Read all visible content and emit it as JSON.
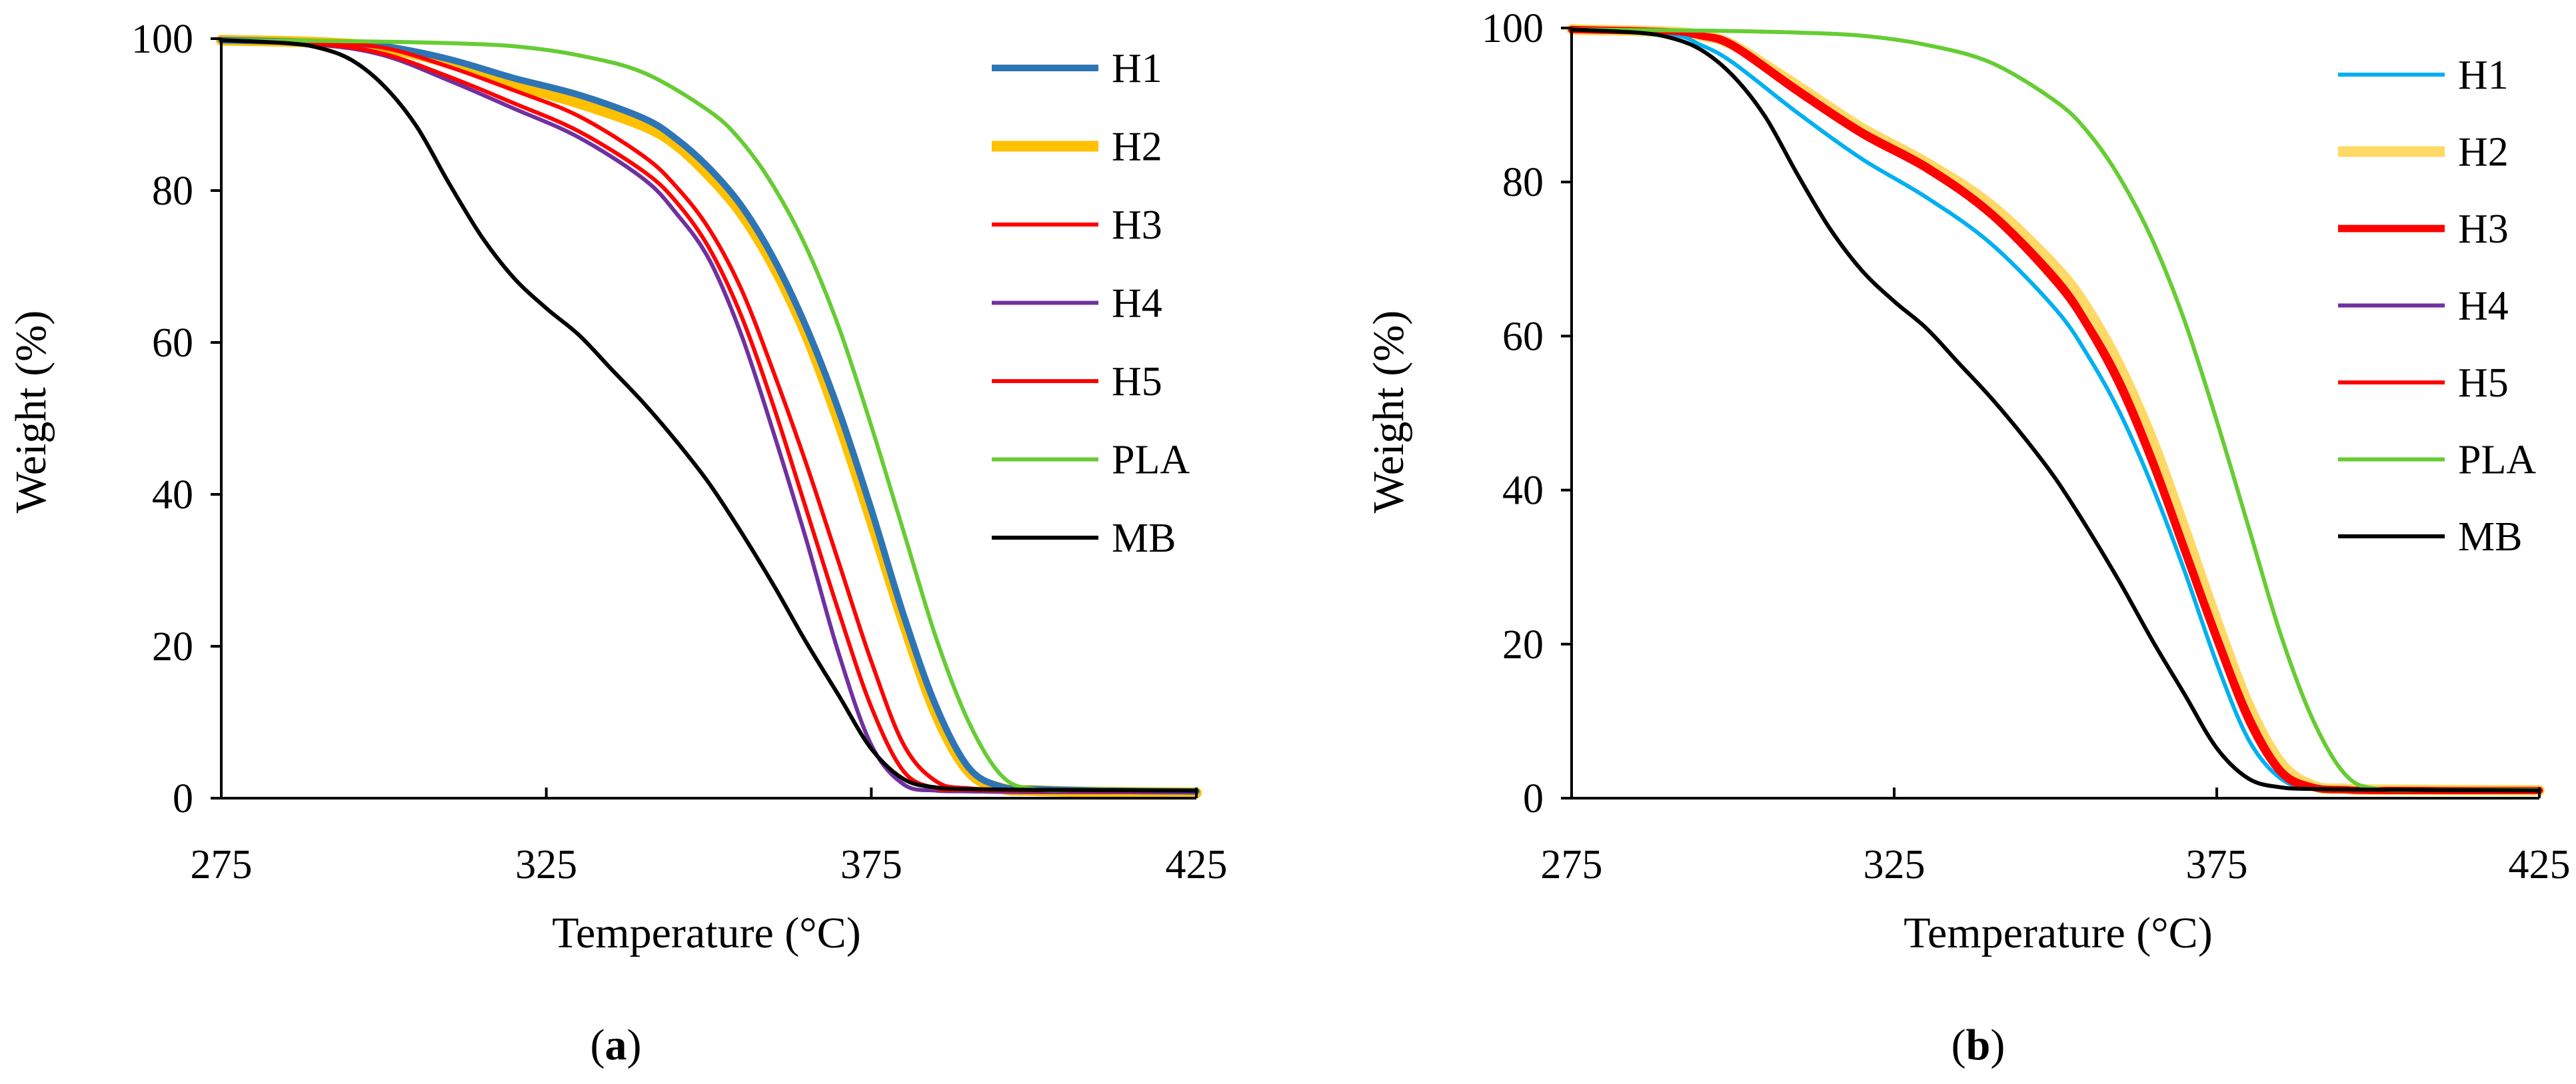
{
  "figure": {
    "panels": [
      {
        "label_open": "(",
        "label_letter": "a",
        "label_close": ")"
      },
      {
        "label_open": "(",
        "label_letter": "b",
        "label_close": ")"
      }
    ]
  },
  "chart_data": [
    {
      "type": "line",
      "panel": "a",
      "title": "",
      "xlabel": "Temperature (°C)",
      "ylabel": "Weight (%)",
      "xlim": [
        275,
        425
      ],
      "ylim": [
        0,
        100
      ],
      "xticks": [
        275,
        325,
        375,
        425
      ],
      "yticks": [
        0,
        20,
        40,
        60,
        80,
        100
      ],
      "legend_position": "right",
      "series": [
        {
          "name": "H1",
          "color": "#2e75b6",
          "width": 10,
          "x": [
            275,
            290,
            300,
            310,
            320,
            330,
            340,
            345,
            350,
            355,
            360,
            365,
            370,
            375,
            380,
            385,
            390,
            395,
            400,
            410,
            425
          ],
          "y": [
            99.8,
            99.5,
            99,
            97.3,
            94.8,
            92.6,
            89.5,
            86.8,
            83,
            78,
            71,
            62,
            51,
            38,
            24,
            12,
            4,
            1.5,
            1.2,
            1.0,
            0.9
          ]
        },
        {
          "name": "H2",
          "color": "#ffc000",
          "width": 16,
          "x": [
            275,
            290,
            300,
            310,
            320,
            330,
            340,
            345,
            350,
            355,
            360,
            365,
            370,
            375,
            380,
            385,
            390,
            395,
            400,
            410,
            425
          ],
          "y": [
            99.8,
            99.5,
            98.8,
            96.8,
            94,
            91.5,
            88.5,
            86,
            82,
            77,
            70,
            61,
            49.5,
            36.5,
            23,
            11,
            3.5,
            1.3,
            1.0,
            0.8,
            0.7
          ]
        },
        {
          "name": "H3",
          "color": "#ff0000",
          "width": 6,
          "x": [
            275,
            290,
            300,
            310,
            320,
            330,
            340,
            345,
            350,
            355,
            360,
            365,
            370,
            375,
            380,
            385,
            390,
            400,
            425
          ],
          "y": [
            99.8,
            99.5,
            98.8,
            96.3,
            93.2,
            89.8,
            84.5,
            80.5,
            75,
            67,
            56,
            44,
            31,
            18,
            7,
            2.2,
            1.3,
            1.1,
            1.0
          ]
        },
        {
          "name": "H4",
          "color": "#7030a0",
          "width": 6,
          "x": [
            275,
            290,
            300,
            310,
            320,
            330,
            340,
            345,
            350,
            355,
            360,
            365,
            370,
            375,
            380,
            385,
            390,
            400,
            425
          ],
          "y": [
            99.8,
            99.2,
            97.8,
            94.5,
            90.8,
            87,
            81.5,
            77,
            71,
            61,
            48,
            34,
            19,
            7,
            1.8,
            1.0,
            0.9,
            0.8,
            0.8
          ]
        },
        {
          "name": "H5",
          "color": "#ff0000",
          "width": 6,
          "x": [
            275,
            290,
            300,
            310,
            320,
            330,
            340,
            345,
            350,
            355,
            360,
            365,
            370,
            375,
            380,
            385,
            390,
            400,
            425
          ],
          "y": [
            99.8,
            99.3,
            98,
            95,
            91.5,
            87.8,
            82.5,
            78.5,
            72.5,
            63.5,
            51.5,
            38,
            24.5,
            12,
            3.5,
            1.3,
            1.1,
            1.0,
            1.0
          ]
        },
        {
          "name": "PLA",
          "color": "#66cc33",
          "width": 6,
          "x": [
            275,
            290,
            300,
            310,
            320,
            330,
            340,
            350,
            355,
            360,
            365,
            370,
            375,
            380,
            385,
            390,
            395,
            400,
            410,
            425
          ],
          "y": [
            99.8,
            99.7,
            99.6,
            99.4,
            99,
            97.8,
            95.5,
            90.5,
            86.5,
            80.5,
            72.5,
            62,
            49,
            35,
            21,
            10,
            3,
            1.2,
            1.1,
            1.1
          ]
        },
        {
          "name": "MB",
          "color": "#000000",
          "width": 6,
          "x": [
            275,
            285,
            290,
            295,
            300,
            305,
            310,
            315,
            320,
            325,
            330,
            335,
            340,
            345,
            350,
            355,
            360,
            365,
            370,
            375,
            380,
            385,
            390,
            400,
            425
          ],
          "y": [
            99.8,
            99.4,
            98.8,
            97.2,
            93.8,
            88.5,
            81,
            74,
            68.5,
            64.5,
            61,
            56.5,
            52,
            47,
            41.5,
            35,
            28,
            20.5,
            13.5,
            6.5,
            2.5,
            1.4,
            1.2,
            1.1,
            1.0
          ]
        }
      ]
    },
    {
      "type": "line",
      "panel": "b",
      "title": "",
      "xlabel": "Temperature (°C)",
      "ylabel": "Weight (%)",
      "xlim": [
        275,
        425
      ],
      "ylim": [
        0,
        100
      ],
      "xticks": [
        275,
        325,
        375,
        425
      ],
      "yticks": [
        0,
        20,
        40,
        60,
        80,
        100
      ],
      "legend_position": "right",
      "series": [
        {
          "name": "H1",
          "color": "#00b0f0",
          "width": 6,
          "x": [
            275,
            290,
            295,
            300,
            310,
            320,
            330,
            340,
            350,
            355,
            360,
            365,
            370,
            375,
            380,
            385,
            390,
            400,
            425
          ],
          "y": [
            99.8,
            99.2,
            97.8,
            95.5,
            89,
            83,
            78,
            72,
            63.5,
            57.5,
            50,
            40.5,
            29.5,
            17.5,
            7.5,
            2.5,
            1.3,
            1.1,
            1.0
          ]
        },
        {
          "name": "H2",
          "color": "#ffd966",
          "width": 16,
          "x": [
            275,
            290,
            295,
            300,
            310,
            320,
            330,
            340,
            350,
            355,
            360,
            365,
            370,
            375,
            380,
            385,
            390,
            395,
            400,
            425
          ],
          "y": [
            99.8,
            99.5,
            99,
            97.8,
            92.5,
            87,
            82.5,
            77,
            69,
            63.5,
            56,
            46.5,
            35,
            23,
            12,
            4.5,
            1.6,
            1.2,
            1.1,
            1.0
          ]
        },
        {
          "name": "H3",
          "color": "#ff0000",
          "width": 11,
          "x": [
            275,
            290,
            295,
            300,
            310,
            320,
            330,
            340,
            350,
            355,
            360,
            365,
            370,
            375,
            380,
            385,
            390,
            395,
            400,
            425
          ],
          "y": [
            99.8,
            99.5,
            99,
            97.8,
            92,
            86.5,
            82,
            76,
            67.5,
            61.5,
            54,
            44,
            32.5,
            21,
            10.5,
            3.5,
            1.4,
            1.1,
            1.0,
            1.0
          ]
        },
        {
          "name": "H4",
          "color": "#7030a0",
          "width": 6,
          "x": [
            275,
            290,
            295,
            300,
            310,
            320,
            330,
            340,
            350,
            355,
            360,
            365,
            370,
            375,
            380,
            385,
            390,
            400,
            425
          ],
          "y": [
            99.8,
            99.4,
            98.8,
            97.4,
            91.5,
            86,
            81.5,
            75.5,
            66.8,
            60.8,
            53,
            43,
            31.5,
            20,
            9.5,
            3,
            1.3,
            1.1,
            1.0
          ]
        },
        {
          "name": "H5",
          "color": "#ff0000",
          "width": 6,
          "x": [
            275,
            290,
            295,
            300,
            310,
            320,
            330,
            340,
            350,
            355,
            360,
            365,
            370,
            375,
            380,
            385,
            390,
            400,
            425
          ],
          "y": [
            99.8,
            99.4,
            98.8,
            97.4,
            91.5,
            86,
            81.5,
            75.5,
            66.8,
            60.8,
            53,
            43,
            31.5,
            20,
            9.5,
            3,
            1.3,
            1.1,
            1.0
          ]
        },
        {
          "name": "PLA",
          "color": "#66cc33",
          "width": 6,
          "x": [
            275,
            290,
            300,
            310,
            320,
            330,
            340,
            350,
            355,
            360,
            365,
            370,
            375,
            380,
            385,
            390,
            395,
            400,
            410,
            425
          ],
          "y": [
            99.8,
            99.7,
            99.6,
            99.4,
            99,
            97.8,
            95.5,
            90.5,
            86.5,
            80.5,
            72.5,
            62,
            49,
            35,
            21,
            10,
            3,
            1.2,
            1.1,
            1.1
          ]
        },
        {
          "name": "MB",
          "color": "#000000",
          "width": 6,
          "x": [
            275,
            285,
            290,
            295,
            300,
            305,
            310,
            315,
            320,
            325,
            330,
            335,
            340,
            345,
            350,
            355,
            360,
            365,
            370,
            375,
            380,
            385,
            390,
            400,
            425
          ],
          "y": [
            99.8,
            99.4,
            98.8,
            97.2,
            93.8,
            88.5,
            81,
            74,
            68.5,
            64.5,
            61,
            56.5,
            52,
            47,
            41.5,
            35,
            28,
            20.5,
            13.5,
            6.5,
            2.5,
            1.4,
            1.2,
            1.1,
            1.0
          ]
        }
      ]
    }
  ]
}
